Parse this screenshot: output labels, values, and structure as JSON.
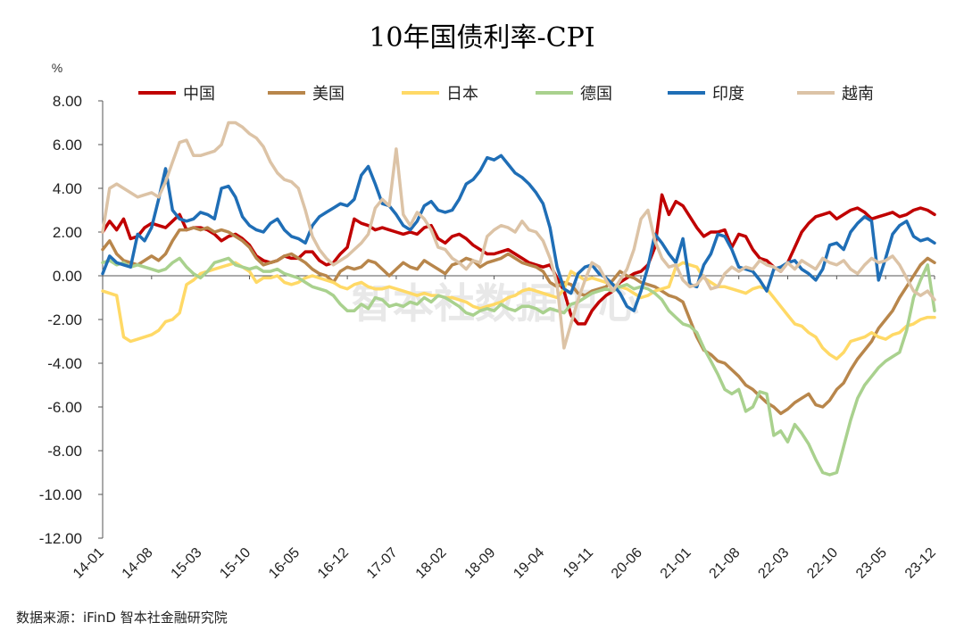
{
  "watermark": "智本社数据中心",
  "source": "数据来源：iFinD 智本社金融研究院",
  "chart_data": {
    "type": "line",
    "title": "10年国债利率-CPI",
    "ylabel": "%",
    "ylim": [
      -12,
      8
    ],
    "yticks": [
      "8.00",
      "6.00",
      "4.00",
      "2.00",
      "0.00",
      "-2.00",
      "-4.00",
      "-6.00",
      "-8.00",
      "-10.00",
      "-12.00"
    ],
    "x_start": "14-01",
    "n_months": 120,
    "xticks": [
      "14-01",
      "14-08",
      "15-03",
      "15-10",
      "16-05",
      "16-12",
      "17-07",
      "18-02",
      "18-09",
      "19-04",
      "19-11",
      "20-06",
      "21-01",
      "21-08",
      "22-03",
      "22-10",
      "23-05",
      "23-12"
    ],
    "legend_placement": "top",
    "grid": false,
    "series": [
      {
        "name": "中国",
        "color": "#c00000",
        "values": [
          2.0,
          2.5,
          2.1,
          2.6,
          1.7,
          1.8,
          2.2,
          2.4,
          2.3,
          2.2,
          2.5,
          2.8,
          2.1,
          2.2,
          2.2,
          2.1,
          1.9,
          1.6,
          1.8,
          1.9,
          1.7,
          1.4,
          0.9,
          0.7,
          0.6,
          0.7,
          0.9,
          0.8,
          0.8,
          1.1,
          1.1,
          0.7,
          0.5,
          0.6,
          1.0,
          1.3,
          2.6,
          2.4,
          2.3,
          2.1,
          2.2,
          2.1,
          2.0,
          1.9,
          2.0,
          1.9,
          2.2,
          2.3,
          1.7,
          1.5,
          1.8,
          1.9,
          1.7,
          1.4,
          1.2,
          1.0,
          1.0,
          1.1,
          1.2,
          1.0,
          0.8,
          0.6,
          0.5,
          0.4,
          0.5,
          -0.1,
          -0.7,
          -1.8,
          -2.2,
          -2.2,
          -1.6,
          -1.2,
          -0.9,
          -0.7,
          -0.3,
          -0.1,
          0.1,
          0.2,
          0.5,
          1.3,
          3.7,
          2.8,
          3.4,
          3.2,
          2.7,
          2.2,
          1.8,
          2.0,
          2.0,
          2.1,
          1.3,
          1.9,
          1.8,
          1.2,
          0.8,
          0.7,
          0.4,
          0.2,
          0.6,
          1.3,
          2.0,
          2.4,
          2.7,
          2.8,
          2.9,
          2.6,
          2.8,
          3.0,
          3.1,
          2.9,
          2.6,
          2.7,
          2.8,
          2.9,
          2.7,
          2.8,
          3.0,
          3.1,
          3.0,
          2.8
        ]
      },
      {
        "name": "美国",
        "color": "#b8864b",
        "values": [
          1.2,
          1.6,
          1.0,
          0.7,
          0.6,
          0.5,
          0.7,
          0.9,
          0.7,
          1.0,
          1.6,
          2.1,
          2.1,
          2.2,
          2.1,
          2.2,
          2.0,
          2.1,
          2.0,
          1.8,
          1.6,
          1.3,
          0.8,
          0.5,
          0.6,
          0.7,
          0.9,
          1.0,
          0.8,
          0.6,
          0.3,
          0.1,
          0.0,
          -0.3,
          0.2,
          0.4,
          0.3,
          0.4,
          0.7,
          0.6,
          0.3,
          0.0,
          0.3,
          0.6,
          0.4,
          0.3,
          0.7,
          0.5,
          0.3,
          0.1,
          0.5,
          0.6,
          0.8,
          0.7,
          0.4,
          0.6,
          0.7,
          0.8,
          1.0,
          0.8,
          0.6,
          0.5,
          0.4,
          0.2,
          -0.3,
          -0.5,
          -0.3,
          -0.4,
          -0.8,
          -0.9,
          -0.7,
          -0.6,
          -0.5,
          -0.2,
          0.2,
          0.0,
          -0.1,
          -0.3,
          -0.4,
          -0.5,
          -0.7,
          -0.9,
          -1.0,
          -1.2,
          -2.0,
          -2.8,
          -3.4,
          -3.6,
          -3.9,
          -4.0,
          -4.3,
          -4.6,
          -5.0,
          -5.2,
          -5.5,
          -5.8,
          -6.0,
          -6.3,
          -6.1,
          -5.8,
          -5.6,
          -5.4,
          -5.9,
          -6.0,
          -5.7,
          -5.2,
          -4.9,
          -4.3,
          -3.8,
          -3.4,
          -3.0,
          -2.4,
          -2.0,
          -1.6,
          -1.0,
          -0.5,
          0.0,
          0.5,
          0.8,
          0.6
        ]
      },
      {
        "name": "日本",
        "color": "#ffd966",
        "values": [
          -0.7,
          -0.8,
          -0.9,
          -2.8,
          -3.0,
          -2.9,
          -2.8,
          -2.7,
          -2.5,
          -2.1,
          -2.0,
          -1.7,
          -0.4,
          -0.2,
          0.1,
          0.2,
          0.3,
          0.4,
          0.5,
          0.6,
          0.4,
          0.2,
          -0.3,
          -0.1,
          -0.1,
          0.0,
          -0.3,
          -0.4,
          -0.3,
          -0.1,
          0.0,
          -0.1,
          -0.2,
          -0.3,
          -0.5,
          -0.6,
          -0.4,
          -0.3,
          -0.5,
          -0.6,
          -0.6,
          -0.5,
          -0.6,
          -0.7,
          -0.8,
          -0.9,
          -0.8,
          -0.9,
          -0.9,
          -1.0,
          -1.0,
          -1.1,
          -1.2,
          -1.4,
          -1.5,
          -1.4,
          -1.3,
          -1.2,
          -1.0,
          -0.9,
          -0.7,
          -0.6,
          -0.7,
          -0.8,
          -0.9,
          -1.0,
          -0.6,
          0.2,
          0.0,
          -0.2,
          -0.1,
          -0.2,
          -0.3,
          -0.4,
          -0.5,
          -0.6,
          -0.8,
          -1.0,
          -0.9,
          -0.7,
          -0.6,
          -0.5,
          0.4,
          0.6,
          0.5,
          0.4,
          -0.1,
          -0.3,
          -0.5,
          -0.5,
          -0.6,
          -0.7,
          -0.8,
          -0.6,
          -0.5,
          -0.6,
          -1.0,
          -1.4,
          -1.8,
          -2.2,
          -2.3,
          -2.6,
          -2.8,
          -3.3,
          -3.6,
          -3.8,
          -3.5,
          -3.0,
          -2.9,
          -2.8,
          -2.6,
          -2.8,
          -2.9,
          -2.7,
          -2.6,
          -2.3,
          -2.2,
          -2.0,
          -1.9,
          -1.9
        ]
      },
      {
        "name": "德国",
        "color": "#a9d18e",
        "values": [
          0.6,
          0.7,
          0.5,
          0.6,
          0.4,
          0.5,
          0.4,
          0.3,
          0.2,
          0.3,
          0.6,
          0.8,
          0.4,
          0.1,
          -0.1,
          0.2,
          0.6,
          0.7,
          0.8,
          0.5,
          0.4,
          0.3,
          0.4,
          0.2,
          0.2,
          0.3,
          0.1,
          0.0,
          -0.1,
          -0.3,
          -0.5,
          -0.6,
          -0.7,
          -0.9,
          -1.3,
          -1.6,
          -1.6,
          -1.3,
          -1.5,
          -1.0,
          -1.1,
          -1.4,
          -1.3,
          -1.4,
          -1.2,
          -1.3,
          -1.0,
          -1.2,
          -0.9,
          -1.0,
          -1.2,
          -1.4,
          -1.7,
          -1.8,
          -1.6,
          -1.5,
          -1.6,
          -1.3,
          -1.5,
          -1.6,
          -1.4,
          -1.4,
          -1.5,
          -1.7,
          -1.5,
          -1.6,
          -1.7,
          -1.3,
          -1.2,
          -1.0,
          -0.8,
          -0.7,
          -0.6,
          -0.7,
          -0.5,
          -0.4,
          -0.6,
          -0.5,
          -0.6,
          -0.8,
          -1.1,
          -1.6,
          -1.9,
          -2.2,
          -2.3,
          -2.6,
          -3.3,
          -3.9,
          -4.5,
          -5.2,
          -5.4,
          -5.2,
          -6.2,
          -6.0,
          -5.3,
          -5.4,
          -7.3,
          -7.1,
          -7.6,
          -6.8,
          -7.2,
          -7.7,
          -8.4,
          -9.0,
          -9.1,
          -9.0,
          -7.8,
          -6.6,
          -5.6,
          -5.0,
          -4.6,
          -4.2,
          -3.9,
          -3.7,
          -3.5,
          -2.5,
          -1.0,
          -0.2,
          0.5,
          -1.6
        ]
      },
      {
        "name": "印度",
        "color": "#1f6eb6",
        "values": [
          0.1,
          0.9,
          0.6,
          0.5,
          0.4,
          1.9,
          1.6,
          2.2,
          3.5,
          4.9,
          3.0,
          2.6,
          2.5,
          2.6,
          2.9,
          2.8,
          2.6,
          4.0,
          4.1,
          3.6,
          2.7,
          2.3,
          2.1,
          2.0,
          2.4,
          2.6,
          2.1,
          1.8,
          1.7,
          1.5,
          2.3,
          2.7,
          2.9,
          3.1,
          3.3,
          3.2,
          3.5,
          4.6,
          5.0,
          4.2,
          3.3,
          3.2,
          2.8,
          2.3,
          2.1,
          2.5,
          3.2,
          3.4,
          3.0,
          2.9,
          3.0,
          3.5,
          4.2,
          4.4,
          4.8,
          5.4,
          5.3,
          5.5,
          5.1,
          4.7,
          4.5,
          4.2,
          3.8,
          3.3,
          2.2,
          0.4,
          -0.6,
          -0.8,
          0.1,
          0.4,
          0.5,
          0.1,
          -0.1,
          -0.4,
          -0.8,
          -1.4,
          -1.6,
          -0.7,
          0.4,
          1.9,
          1.5,
          1.0,
          0.6,
          1.7,
          -0.4,
          -0.5,
          0.5,
          1.0,
          1.9,
          1.8,
          1.2,
          0.4,
          0.3,
          0.2,
          -0.2,
          -0.7,
          0.3,
          0.4,
          0.6,
          0.7,
          0.3,
          0.1,
          -0.2,
          0.3,
          1.4,
          1.5,
          1.2,
          2.0,
          2.4,
          2.7,
          2.5,
          -0.2,
          0.8,
          1.9,
          2.3,
          2.5,
          1.8,
          1.6,
          1.7,
          1.5
        ]
      },
      {
        "name": "越南",
        "color": "#dcc3a6",
        "values": [
          2.0,
          4.0,
          4.2,
          4.0,
          3.8,
          3.6,
          3.7,
          3.8,
          3.6,
          4.3,
          5.2,
          6.1,
          6.2,
          5.5,
          5.5,
          5.6,
          5.7,
          6.0,
          7.0,
          7.0,
          6.8,
          6.5,
          6.3,
          5.9,
          5.2,
          4.7,
          4.4,
          4.3,
          4.0,
          3.0,
          1.8,
          1.2,
          0.8,
          0.5,
          0.7,
          0.9,
          1.2,
          1.5,
          1.9,
          3.1,
          3.5,
          3.2,
          5.8,
          2.8,
          2.3,
          2.9,
          2.6,
          2.1,
          1.3,
          1.2,
          0.8,
          0.6,
          0.3,
          0.7,
          0.6,
          1.8,
          2.1,
          2.3,
          2.2,
          2.0,
          2.5,
          2.1,
          2.0,
          1.6,
          0.8,
          -0.4,
          -3.3,
          -2.2,
          -1.1,
          -0.2,
          0.6,
          0.4,
          -0.2,
          -0.7,
          -0.2,
          0.3,
          1.2,
          2.6,
          3.0,
          1.6,
          0.8,
          0.4,
          0.5,
          -0.2,
          -0.5,
          -0.4,
          0.0,
          -0.6,
          -0.5,
          0.1,
          0.4,
          0.2,
          0.4,
          0.3,
          0.7,
          0.5,
          0.4,
          0.2,
          0.6,
          0.3,
          0.7,
          0.5,
          0.3,
          0.8,
          0.6,
          0.5,
          0.7,
          0.3,
          0.1,
          0.5,
          0.8,
          0.6,
          0.7,
          0.9,
          0.5,
          -0.1,
          -0.7,
          -0.9,
          -0.7,
          -1.1
        ]
      }
    ]
  }
}
